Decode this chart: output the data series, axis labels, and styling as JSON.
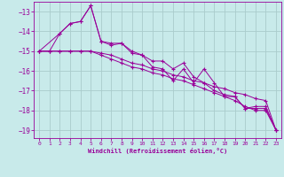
{
  "xlabel": "Windchill (Refroidissement éolien,°C)",
  "bg_color": "#c8eaea",
  "grid_color": "#aacccc",
  "line_color": "#990099",
  "xlim": [
    -0.5,
    23.5
  ],
  "ylim": [
    -19.4,
    -12.5
  ],
  "yticks": [
    -19,
    -18,
    -17,
    -16,
    -15,
    -14,
    -13
  ],
  "xticks": [
    0,
    1,
    2,
    3,
    4,
    5,
    6,
    7,
    8,
    9,
    10,
    11,
    12,
    13,
    14,
    15,
    16,
    17,
    18,
    19,
    20,
    21,
    22,
    23
  ],
  "series1": {
    "x": [
      0,
      1,
      2,
      3,
      4,
      5,
      6,
      7,
      8,
      9,
      10,
      11,
      12,
      13,
      14,
      15,
      16,
      17,
      18,
      19,
      20,
      21,
      22,
      23
    ],
    "y": [
      -15.0,
      -15.0,
      -14.1,
      -13.6,
      -13.5,
      -12.7,
      -14.5,
      -14.6,
      -14.6,
      -15.0,
      -15.2,
      -15.5,
      -15.5,
      -15.9,
      -15.6,
      -16.3,
      -16.6,
      -17.0,
      -17.2,
      -17.3,
      -17.9,
      -17.8,
      -17.8,
      -19.0
    ]
  },
  "series2": {
    "x": [
      0,
      1,
      2,
      3,
      4,
      5,
      6,
      7,
      8,
      9,
      10,
      11,
      12,
      13,
      14,
      15,
      16,
      17,
      18,
      19,
      20,
      21,
      22,
      23
    ],
    "y": [
      -15.0,
      -15.0,
      -15.0,
      -15.0,
      -15.0,
      -15.0,
      -15.1,
      -15.2,
      -15.4,
      -15.6,
      -15.7,
      -15.9,
      -16.0,
      -16.2,
      -16.3,
      -16.5,
      -16.6,
      -16.8,
      -16.9,
      -17.1,
      -17.2,
      -17.4,
      -17.5,
      -19.0
    ]
  },
  "series3": {
    "x": [
      0,
      2,
      3,
      4,
      5,
      6,
      7,
      8,
      9,
      10,
      11,
      12,
      13,
      14,
      15,
      16,
      17,
      18,
      19,
      20,
      21,
      22,
      23
    ],
    "y": [
      -15.0,
      -14.1,
      -13.6,
      -13.5,
      -12.7,
      -14.5,
      -14.7,
      -14.6,
      -15.1,
      -15.2,
      -15.8,
      -15.9,
      -16.5,
      -15.9,
      -16.6,
      -15.9,
      -16.6,
      -17.3,
      -17.3,
      -17.9,
      -17.9,
      -17.9,
      -19.0
    ]
  },
  "series4": {
    "x": [
      0,
      1,
      2,
      3,
      4,
      5,
      6,
      7,
      8,
      9,
      10,
      11,
      12,
      13,
      14,
      15,
      16,
      17,
      18,
      19,
      20,
      21,
      22,
      23
    ],
    "y": [
      -15.0,
      -15.0,
      -15.0,
      -15.0,
      -15.0,
      -15.0,
      -15.2,
      -15.4,
      -15.6,
      -15.8,
      -15.9,
      -16.1,
      -16.2,
      -16.4,
      -16.5,
      -16.7,
      -16.9,
      -17.1,
      -17.3,
      -17.5,
      -17.8,
      -18.0,
      -18.0,
      -19.0
    ]
  }
}
